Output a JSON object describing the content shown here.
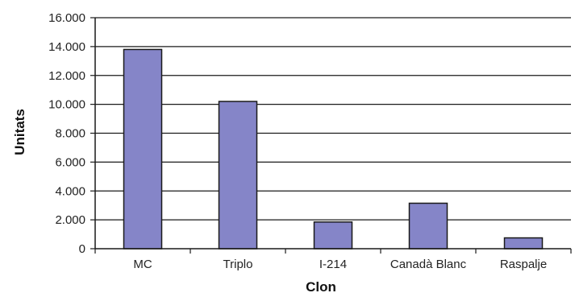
{
  "chart_data": {
    "type": "bar",
    "categories": [
      "MC",
      "Triplo",
      "I-214",
      "Canadà Blanc",
      "Raspalje"
    ],
    "values": [
      13800,
      10200,
      1850,
      3150,
      750
    ],
    "xlabel": "Clon",
    "ylabel": "Unitats",
    "ylim": [
      0,
      16000
    ],
    "yticks": [
      0,
      2000,
      4000,
      6000,
      8000,
      10000,
      12000,
      14000,
      16000
    ],
    "ytick_labels": [
      "0",
      "2.000",
      "4.000",
      "6.000",
      "8.000",
      "10.000",
      "12.000",
      "14.000",
      "16.000"
    ],
    "grid": true,
    "legend": false,
    "colors": {
      "bar_fill": "#8585c8",
      "bar_stroke": "#1a1a1a",
      "grid": "#1a1a1a",
      "axis": "#1a1a1a"
    }
  }
}
